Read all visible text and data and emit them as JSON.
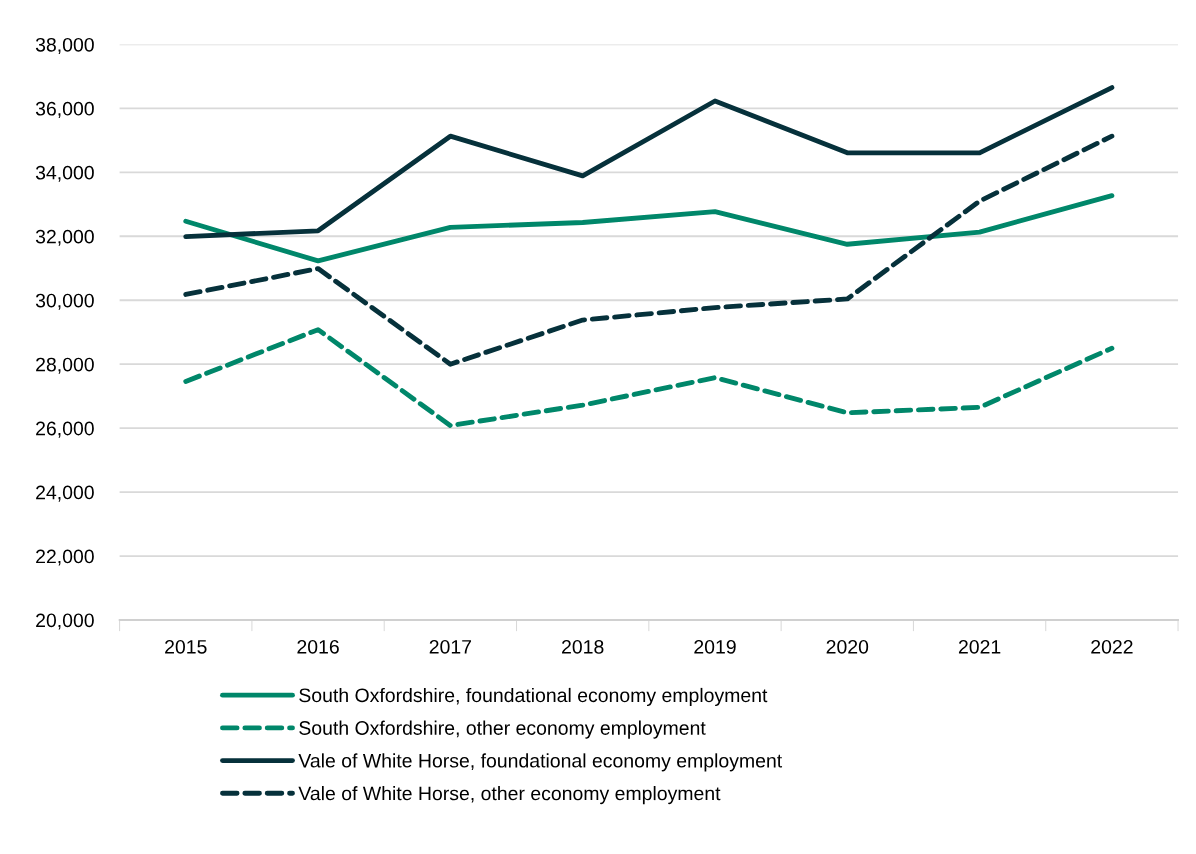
{
  "chart_data": {
    "type": "line",
    "categories": [
      "2015",
      "2016",
      "2017",
      "2018",
      "2019",
      "2020",
      "2021",
      "2022"
    ],
    "series": [
      {
        "name": "South Oxfordshire, foundational economy employment",
        "color": "#00876a",
        "line_style": "solid",
        "values": [
          32470,
          31230,
          32280,
          32430,
          32770,
          31750,
          32130,
          33270
        ]
      },
      {
        "name": "South Oxfordshire, other economy employment",
        "color": "#00876a",
        "line_style": "dashed",
        "values": [
          27460,
          29080,
          26080,
          26720,
          27580,
          26480,
          26650,
          28500
        ]
      },
      {
        "name": "Vale of White Horse, foundational economy employment",
        "color": "#06313b",
        "line_style": "solid",
        "values": [
          31990,
          32170,
          35130,
          33890,
          36230,
          34610,
          34610,
          36650
        ]
      },
      {
        "name": "Vale of White Horse, other economy employment",
        "color": "#06313b",
        "line_style": "dashed",
        "values": [
          30180,
          30990,
          28000,
          29380,
          29770,
          30040,
          33100,
          35130
        ]
      }
    ],
    "ylim": [
      20000,
      38000
    ],
    "yticks": [
      {
        "value": 20000,
        "label": "20,000"
      },
      {
        "value": 22000,
        "label": "22,000"
      },
      {
        "value": 24000,
        "label": "24,000"
      },
      {
        "value": 26000,
        "label": "26,000"
      },
      {
        "value": 28000,
        "label": "28,000"
      },
      {
        "value": 30000,
        "label": "30,000"
      },
      {
        "value": 32000,
        "label": "32,000"
      },
      {
        "value": 34000,
        "label": "34,000"
      },
      {
        "value": 36000,
        "label": "36,000"
      },
      {
        "value": 38000,
        "label": "38,000"
      }
    ],
    "grid": "y",
    "legend": "bottom",
    "marker": "none"
  }
}
